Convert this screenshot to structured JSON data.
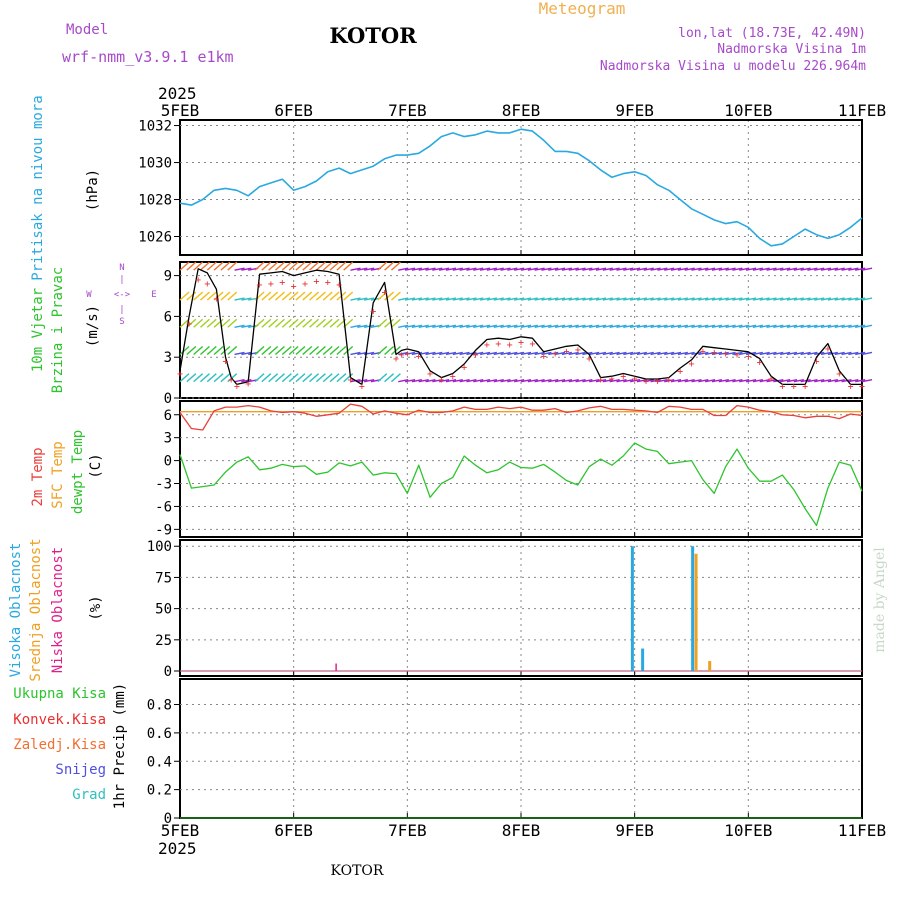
{
  "header": {
    "model_label": "Model",
    "model_name": "wrf-nmm_v3.9.1  e1km",
    "station": "KOTOR",
    "product": "Meteogram",
    "lonlat": "lon,lat (18.73E, 42.49N)",
    "elevation": "Nadmorska Visina 1m",
    "model_elevation": "Nadmorska Visina u modelu 226.964m",
    "footer_station": "KOTOR",
    "credit": "made by Angel"
  },
  "colors": {
    "header_purple": "#a64ac9",
    "title_orange": "#f0b050",
    "pressure": "#2aa9e0",
    "temp2m": "#e8403a",
    "sfc_temp": "#f0a020",
    "dewpt": "#2ec42e",
    "wind_black": "#000000",
    "wind_red": "#e83030",
    "high_cloud": "#2aa9e0",
    "mid_cloud": "#f0a020",
    "low_cloud": "#e0208a",
    "total_precip": "#2ec42e",
    "conv_precip": "#e83030",
    "frozen_precip": "#f07030",
    "snow": "#5050e0",
    "hail": "#30c0c0",
    "grid": "#888888",
    "credit": "#c8d8c8"
  },
  "chart_data": [
    {
      "id": "pressure",
      "type": "line",
      "ylabel_left": "Pritisak na nivou mora",
      "ylabel_units": "(hPa)",
      "ylim": [
        1025,
        1032.3
      ],
      "yticks": [
        "1026",
        "1028",
        "1030",
        "1032"
      ],
      "x_top_year": "2025",
      "x_categories": [
        "5FEB",
        "6FEB",
        "7FEB",
        "8FEB",
        "9FEB",
        "10FEB",
        "11FEB"
      ],
      "series": [
        {
          "x": [
            0,
            0.1,
            0.2,
            0.3,
            0.4,
            0.5,
            0.6,
            0.7,
            0.8,
            0.9,
            1.0,
            1.1,
            1.2,
            1.3,
            1.4,
            1.5,
            1.6,
            1.7,
            1.8,
            1.9,
            2.0,
            2.1,
            2.2,
            2.3,
            2.4,
            2.5,
            2.6,
            2.7,
            2.8,
            2.9,
            3.0,
            3.1,
            3.2,
            3.3,
            3.4,
            3.5,
            3.6,
            3.7,
            3.8,
            3.9,
            4.0,
            4.1,
            4.2,
            4.3,
            4.4,
            4.5,
            4.6,
            4.7,
            4.8,
            4.9,
            5.0,
            5.1,
            5.2,
            5.3,
            5.4,
            5.5,
            5.6,
            5.7,
            5.8,
            5.9,
            6.0
          ],
          "y": [
            1027.8,
            1027.7,
            1028.0,
            1028.5,
            1028.6,
            1028.5,
            1028.2,
            1028.7,
            1028.9,
            1029.1,
            1028.5,
            1028.7,
            1029.0,
            1029.5,
            1029.7,
            1029.4,
            1029.6,
            1029.8,
            1030.2,
            1030.4,
            1030.4,
            1030.5,
            1030.9,
            1031.4,
            1031.6,
            1031.4,
            1031.5,
            1031.7,
            1031.6,
            1031.6,
            1031.8,
            1031.7,
            1031.2,
            1030.6,
            1030.6,
            1030.5,
            1030.1,
            1029.6,
            1029.2,
            1029.4,
            1029.5,
            1029.3,
            1028.8,
            1028.5,
            1028.0,
            1027.5,
            1027.2,
            1026.9,
            1026.7,
            1026.8,
            1026.5,
            1025.9,
            1025.5,
            1025.6,
            1026.0,
            1026.4,
            1026.1,
            1025.9,
            1026.1,
            1026.5,
            1027.0
          ]
        }
      ]
    },
    {
      "id": "wind",
      "type": "line",
      "ylabel_left_1": "10m Vjetar",
      "ylabel_left_2": "Brzina i Pravac",
      "ylabel_units": "(m/s)",
      "compass": [
        "N",
        "W",
        "E",
        "S",
        "<->",
        "<->",
        "|",
        "|"
      ],
      "ylim": [
        0,
        10
      ],
      "yticks": [
        "0",
        "3",
        "6",
        "9"
      ],
      "series": [
        {
          "name": "black",
          "x": [
            0,
            0.08,
            0.16,
            0.24,
            0.32,
            0.4,
            0.45,
            0.5,
            0.6,
            0.7,
            0.8,
            0.9,
            1.0,
            1.1,
            1.2,
            1.3,
            1.4,
            1.5,
            1.6,
            1.7,
            1.8,
            1.9,
            1.95,
            2.0,
            2.1,
            2.2,
            2.3,
            2.4,
            2.5,
            2.6,
            2.7,
            2.8,
            2.9,
            3.0,
            3.1,
            3.2,
            3.3,
            3.4,
            3.5,
            3.6,
            3.7,
            3.8,
            3.9,
            4.0,
            4.1,
            4.2,
            4.3,
            4.4,
            4.5,
            4.6,
            4.7,
            4.8,
            4.9,
            5.0,
            5.1,
            5.2,
            5.3,
            5.4,
            5.5,
            5.6,
            5.7,
            5.8,
            5.9,
            6.0
          ],
          "y": [
            2,
            6,
            9.5,
            9.2,
            8,
            3,
            1.5,
            1.0,
            1.2,
            9.1,
            9.2,
            9.3,
            9.0,
            9.2,
            9.4,
            9.3,
            9.1,
            1.5,
            1.0,
            7,
            8.5,
            3.2,
            3.5,
            3.6,
            3.4,
            2.0,
            1.5,
            1.8,
            2.5,
            3.5,
            4.3,
            4.4,
            4.3,
            4.5,
            4.4,
            3.4,
            3.6,
            3.8,
            3.9,
            3.2,
            1.5,
            1.6,
            1.8,
            1.6,
            1.4,
            1.4,
            1.5,
            2.2,
            2.8,
            3.8,
            3.7,
            3.6,
            3.5,
            3.4,
            2.9,
            1.6,
            1.0,
            1.0,
            1.0,
            3.0,
            4.0,
            2.0,
            1.0,
            1.0
          ]
        }
      ]
    },
    {
      "id": "temperature",
      "type": "line",
      "ylabel_left_1": "2m Temp",
      "ylabel_left_2": "SFC Temp",
      "ylabel_left_3": "dewpt Temp",
      "ylabel_units": "(C)",
      "ylim": [
        -10,
        7.8
      ],
      "yticks": [
        "-9",
        "-6",
        "-3",
        "0",
        "3",
        "6"
      ],
      "series": [
        {
          "name": "2m Temp",
          "x": [
            0,
            0.1,
            0.2,
            0.3,
            0.4,
            0.5,
            0.6,
            0.7,
            0.8,
            0.9,
            1.0,
            1.1,
            1.2,
            1.3,
            1.4,
            1.5,
            1.6,
            1.7,
            1.8,
            1.9,
            2.0,
            2.1,
            2.2,
            2.3,
            2.4,
            2.5,
            2.6,
            2.7,
            2.8,
            2.9,
            3.0,
            3.1,
            3.2,
            3.3,
            3.4,
            3.5,
            3.6,
            3.7,
            3.8,
            3.9,
            4.0,
            4.1,
            4.2,
            4.3,
            4.4,
            4.5,
            4.6,
            4.7,
            4.8,
            4.9,
            5.0,
            5.1,
            5.2,
            5.3,
            5.4,
            5.5,
            5.6,
            5.7,
            5.8,
            5.9,
            6.0
          ],
          "y": [
            6.3,
            4.2,
            4.0,
            6.5,
            7.0,
            7.0,
            7.2,
            7.0,
            6.5,
            6.3,
            6.4,
            6.2,
            5.8,
            6.0,
            6.2,
            7.4,
            7.1,
            6.1,
            6.5,
            6.2,
            6.0,
            6.6,
            6.3,
            6.3,
            6.5,
            7.0,
            6.7,
            6.7,
            7.0,
            6.8,
            7.0,
            6.6,
            6.6,
            6.8,
            6.3,
            6.5,
            6.9,
            7.1,
            6.7,
            6.7,
            6.6,
            6.5,
            6.3,
            7.1,
            7.0,
            6.7,
            6.7,
            5.9,
            5.9,
            7.2,
            7.0,
            6.6,
            6.4,
            6.0,
            5.9,
            5.6,
            5.8,
            5.8,
            5.5,
            6.1,
            5.9
          ]
        },
        {
          "name": "SFC Temp",
          "x": [
            0,
            6
          ],
          "y": [
            6.4,
            6.4
          ]
        },
        {
          "name": "dewpt Temp",
          "x": [
            0,
            0.1,
            0.2,
            0.3,
            0.4,
            0.5,
            0.6,
            0.7,
            0.8,
            0.9,
            1.0,
            1.1,
            1.2,
            1.3,
            1.4,
            1.5,
            1.6,
            1.7,
            1.8,
            1.9,
            2.0,
            2.1,
            2.2,
            2.3,
            2.4,
            2.5,
            2.6,
            2.7,
            2.8,
            2.9,
            3.0,
            3.1,
            3.2,
            3.3,
            3.4,
            3.5,
            3.6,
            3.7,
            3.8,
            3.9,
            4.0,
            4.1,
            4.2,
            4.3,
            4.4,
            4.5,
            4.6,
            4.7,
            4.8,
            4.9,
            5.0,
            5.1,
            5.2,
            5.3,
            5.4,
            5.5,
            5.6,
            5.7,
            5.8,
            5.9,
            6.0
          ],
          "y": [
            0.8,
            -3.6,
            -3.4,
            -3.2,
            -1.5,
            -0.2,
            0.5,
            -1.2,
            -1.0,
            -0.5,
            -0.8,
            -0.7,
            -1.8,
            -1.5,
            -0.3,
            -0.7,
            -0.2,
            -1.9,
            -1.6,
            -1.7,
            -4.3,
            -0.6,
            -4.8,
            -3.0,
            -2.2,
            0.6,
            -0.6,
            -1.6,
            -1.2,
            -0.2,
            -0.9,
            -1.0,
            -0.5,
            -1.5,
            -2.6,
            -3.2,
            -0.8,
            0.2,
            -0.6,
            0.6,
            2.3,
            1.5,
            1.2,
            -0.4,
            -0.2,
            0.0,
            -2.5,
            -4.3,
            -0.8,
            1.5,
            -1.0,
            -2.7,
            -2.7,
            -1.9,
            -3.8,
            -6.3,
            -8.5,
            -3.6,
            -0.2,
            -0.6,
            -4.0
          ]
        }
      ]
    },
    {
      "id": "cloud",
      "type": "bar",
      "ylabel_left_1": "Visoka Oblacnost",
      "ylabel_left_2": "Srednja Oblacnost",
      "ylabel_left_3": "Niska Oblacnost",
      "ylabel_units": "(%)",
      "ylim": [
        -4,
        105
      ],
      "yticks": [
        "0",
        "25",
        "50",
        "75",
        "100"
      ],
      "series": [
        {
          "name": "Visoka Oblacnost",
          "x": [
            3.98,
            4.07,
            4.51
          ],
          "values": [
            100,
            18,
            100
          ]
        },
        {
          "name": "Srednja Oblacnost",
          "x": [
            4.54,
            4.66
          ],
          "values": [
            94,
            8
          ]
        },
        {
          "name": "Niska Oblacnost",
          "x": [
            1.38
          ],
          "values": [
            6
          ]
        }
      ]
    },
    {
      "id": "precip",
      "type": "line",
      "ylabel_units": "1hr Precip (mm)",
      "legend": [
        "Ukupna Kisa",
        "Konvek.Kisa",
        "Zaledj.Kisa",
        "Snijeg",
        "Grad"
      ],
      "ylim": [
        0,
        0.98
      ],
      "yticks": [
        "0",
        "0.2",
        "0.4",
        "0.6",
        "0.8"
      ],
      "x_bottom_year": "2025",
      "x_categories": [
        "5FEB",
        "6FEB",
        "7FEB",
        "8FEB",
        "9FEB",
        "10FEB",
        "11FEB"
      ],
      "series": [
        {
          "name": "Ukupna Kisa",
          "x": [
            0,
            6
          ],
          "y": [
            0,
            0
          ]
        }
      ]
    }
  ]
}
